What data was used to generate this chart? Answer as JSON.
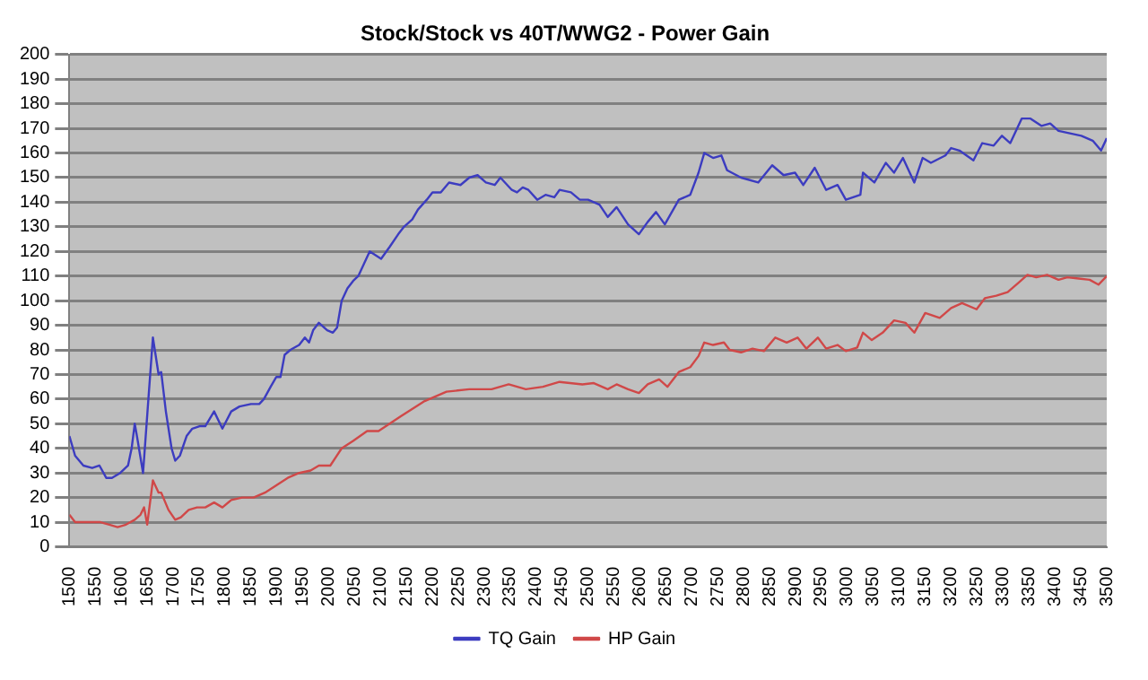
{
  "chart_data": {
    "type": "line",
    "title": "Stock/Stock vs 40T/WWG2 - Power Gain",
    "series": [
      {
        "name": "TQ Gain",
        "color": "#3c3cc0",
        "x": [
          1500,
          1511,
          1527,
          1544,
          1558,
          1571,
          1582,
          1598,
          1613,
          1620,
          1626,
          1631,
          1642,
          1653,
          1661,
          1672,
          1677,
          1686,
          1697,
          1704,
          1713,
          1726,
          1737,
          1751,
          1762,
          1779,
          1795,
          1812,
          1828,
          1850,
          1866,
          1875,
          1888,
          1899,
          1907,
          1915,
          1926,
          1943,
          1954,
          1962,
          1970,
          1981,
          1997,
          2008,
          2016,
          2025,
          2036,
          2047,
          2057,
          2068,
          2079,
          2101,
          2118,
          2134,
          2145,
          2161,
          2172,
          2189,
          2200,
          2216,
          2232,
          2254,
          2271,
          2287,
          2303,
          2320,
          2331,
          2353,
          2363,
          2374,
          2385,
          2402,
          2418,
          2435,
          2445,
          2467,
          2484,
          2500,
          2522,
          2538,
          2555,
          2577,
          2598,
          2615,
          2631,
          2648,
          2675,
          2697,
          2713,
          2724,
          2741,
          2757,
          2768,
          2795,
          2828,
          2855,
          2877,
          2899,
          2915,
          2937,
          2959,
          2981,
          2997,
          3025,
          3030,
          3052,
          3074,
          3090,
          3107,
          3129,
          3145,
          3161,
          3189,
          3200,
          3216,
          3243,
          3260,
          3282,
          3298,
          3314,
          3336,
          3353,
          3374,
          3391,
          3407,
          3429,
          3451,
          3473,
          3489,
          3500
        ],
        "values": [
          45,
          37,
          33,
          32,
          33,
          28,
          28,
          30,
          33,
          40,
          50,
          44,
          30,
          62,
          85,
          70,
          71,
          55,
          40,
          35,
          37,
          45,
          48,
          49,
          49,
          55,
          48,
          55,
          57,
          58,
          58,
          60,
          65,
          69,
          69,
          78,
          80,
          82,
          85,
          83,
          88,
          91,
          88,
          87,
          89,
          100,
          105,
          108,
          110,
          115,
          120,
          117,
          122,
          127,
          130,
          133,
          137,
          141,
          144,
          144,
          148,
          147,
          150,
          151,
          148,
          147,
          150,
          145,
          144,
          146,
          145,
          141,
          143,
          142,
          145,
          144,
          141,
          141,
          139,
          134,
          138,
          131,
          127,
          132,
          136,
          131,
          141,
          143,
          152,
          160,
          158,
          159,
          153,
          150,
          148,
          155,
          151,
          152,
          147,
          154,
          145,
          147,
          141,
          143,
          152,
          148,
          156,
          152,
          158,
          148,
          158,
          156,
          159,
          162,
          161,
          157,
          164,
          163,
          167,
          164,
          174,
          174,
          171,
          172,
          169,
          168,
          167,
          165,
          161,
          166
        ]
      },
      {
        "name": "HP Gain",
        "color": "#d04848",
        "x": [
          1500,
          1511,
          1527,
          1560,
          1577,
          1593,
          1609,
          1626,
          1637,
          1644,
          1650,
          1661,
          1672,
          1677,
          1691,
          1704,
          1715,
          1730,
          1746,
          1762,
          1779,
          1795,
          1812,
          1833,
          1855,
          1877,
          1899,
          1921,
          1943,
          1965,
          1981,
          2003,
          2025,
          2047,
          2074,
          2096,
          2139,
          2183,
          2227,
          2271,
          2314,
          2347,
          2380,
          2413,
          2445,
          2489,
          2511,
          2538,
          2555,
          2577,
          2598,
          2615,
          2637,
          2653,
          2675,
          2697,
          2713,
          2724,
          2741,
          2762,
          2773,
          2795,
          2817,
          2839,
          2861,
          2883,
          2904,
          2921,
          2943,
          2959,
          2981,
          2997,
          3019,
          3030,
          3047,
          3068,
          3090,
          3112,
          3129,
          3150,
          3178,
          3200,
          3221,
          3249,
          3265,
          3287,
          3309,
          3331,
          3347,
          3364,
          3385,
          3407,
          3424,
          3446,
          3467,
          3484,
          3500
        ],
        "values": [
          13,
          10,
          10,
          10,
          9,
          8,
          9,
          11,
          13,
          16,
          9,
          27,
          22,
          22,
          15,
          11,
          12,
          15,
          16,
          16,
          18,
          16,
          19,
          20,
          20,
          22,
          25,
          28,
          30,
          31,
          33,
          33,
          40,
          43,
          47,
          47,
          53,
          59,
          63,
          64,
          64,
          66,
          64,
          65,
          67,
          66,
          66.5,
          64,
          66,
          64,
          62.5,
          66,
          68,
          65,
          71,
          73,
          77.5,
          83,
          82,
          83,
          80,
          79,
          80.5,
          79.5,
          85,
          83,
          85,
          80.5,
          85,
          80.5,
          82,
          79.5,
          81,
          87,
          84,
          87,
          92,
          91,
          87,
          95,
          93,
          97,
          99,
          96.5,
          101,
          102,
          103.5,
          107.5,
          110.5,
          109.5,
          110.5,
          108.5,
          109.5,
          109,
          108.5,
          106.5,
          110
        ]
      }
    ],
    "xlim": [
      1500,
      3500
    ],
    "xticks": [
      1500,
      1550,
      1600,
      1650,
      1700,
      1750,
      1800,
      1850,
      1900,
      1950,
      2000,
      2050,
      2100,
      2150,
      2200,
      2250,
      2300,
      2350,
      2400,
      2450,
      2500,
      2550,
      2600,
      2650,
      2700,
      2750,
      2800,
      2850,
      2900,
      2950,
      3000,
      3050,
      3100,
      3150,
      3200,
      3250,
      3300,
      3350,
      3400,
      3450,
      3500
    ],
    "ylim": [
      0,
      200
    ],
    "yticks": [
      0,
      10,
      20,
      30,
      40,
      50,
      60,
      70,
      80,
      90,
      100,
      110,
      120,
      130,
      140,
      150,
      160,
      170,
      180,
      190,
      200
    ],
    "grid": "y",
    "legend": "bottom",
    "marker": "none",
    "line_style": "solid"
  }
}
